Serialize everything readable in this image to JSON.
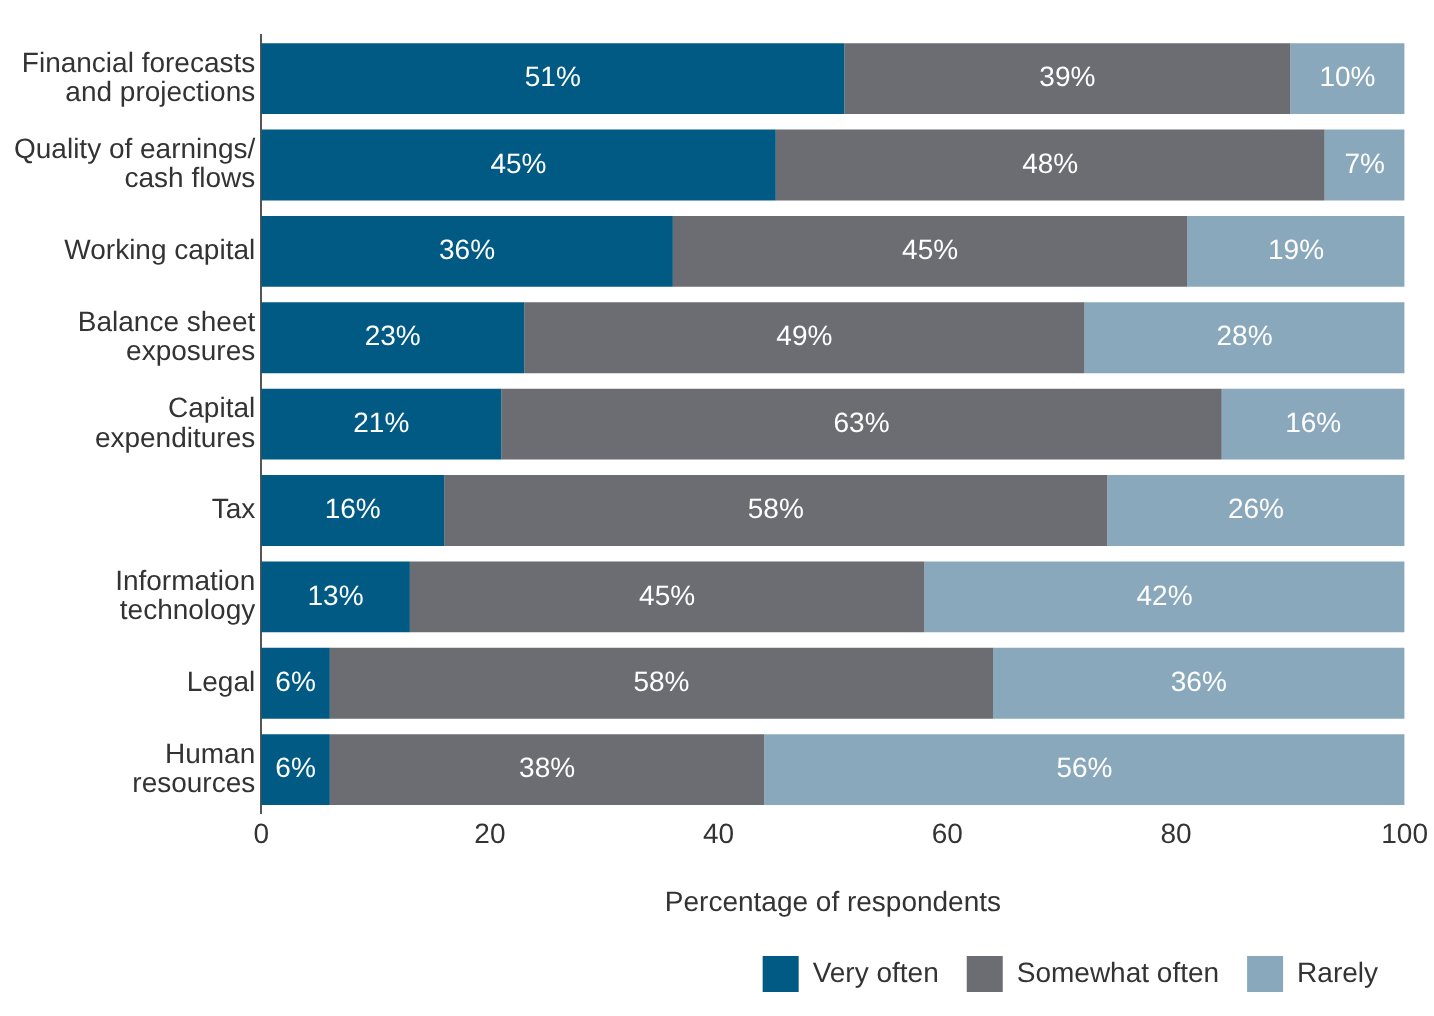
{
  "chart_data": {
    "type": "bar",
    "orientation": "horizontal",
    "stacked": true,
    "categories": [
      "Financial forecasts\nand projections",
      "Quality of earnings/\ncash flows",
      "Working capital",
      "Balance sheet\nexposures",
      "Capital\nexpenditures",
      "Tax",
      "Information\ntechnology",
      "Legal",
      "Human\nresources"
    ],
    "series": [
      {
        "name": "Very often",
        "color": "#005a84",
        "values": [
          51,
          45,
          36,
          23,
          21,
          16,
          13,
          6,
          6
        ],
        "value_labels": [
          "51%",
          "45%",
          "36%",
          "23%",
          "21%",
          "16%",
          "13%",
          "6%",
          "6%"
        ]
      },
      {
        "name": "Somewhat often",
        "color": "#6b6d72",
        "values": [
          39,
          48,
          45,
          49,
          63,
          58,
          45,
          58,
          38
        ],
        "value_labels": [
          "39%",
          "48%",
          "45%",
          "49%",
          "63%",
          "58%",
          "45%",
          "58%",
          "38%"
        ]
      },
      {
        "name": "Rarely",
        "color": "#8aa8bb",
        "values": [
          10,
          7,
          19,
          28,
          16,
          26,
          42,
          36,
          56
        ],
        "value_labels": [
          "10%",
          "7%",
          "19%",
          "28%",
          "16%",
          "26%",
          "42%",
          "36%",
          "56%"
        ]
      }
    ],
    "xlabel": "Percentage of respondents",
    "xlim": [
      0,
      100
    ],
    "xticks": [
      0,
      20,
      40,
      60,
      80,
      100
    ],
    "grid": false,
    "legend": "bottom right"
  }
}
